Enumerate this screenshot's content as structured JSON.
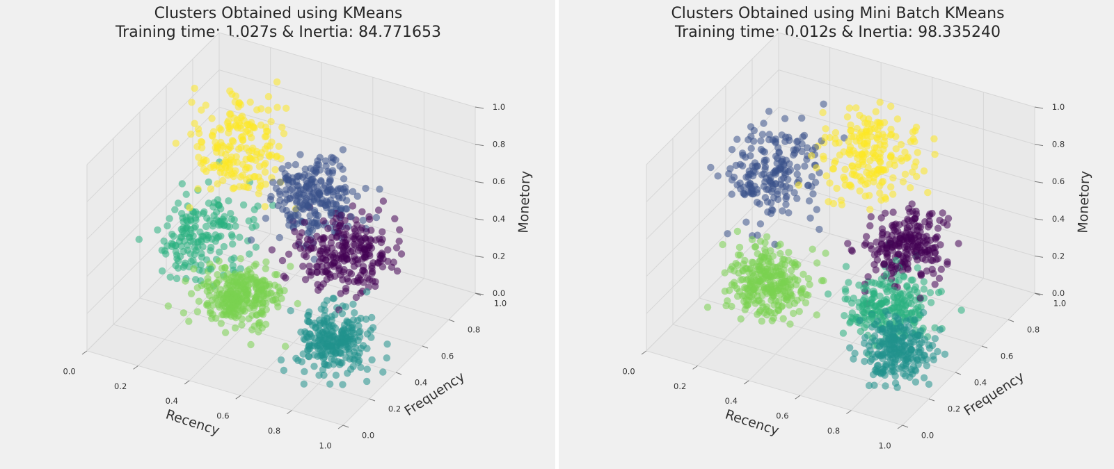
{
  "figure": {
    "background": "#f0f0f0",
    "pane_color": "#e9e9e9",
    "grid_color": "#d6d6d6",
    "palette": {
      "0": "#440154",
      "1": "#3b528b",
      "2": "#21918c",
      "3": "#2ab07f",
      "4": "#7ad151",
      "5": "#fde725"
    }
  },
  "chart_data": [
    {
      "type": "scatter",
      "subtype": "3d-scatter",
      "title": "Clusters Obtained using KMeans",
      "subtitle": "Training time: 1.027s & Inertia: 84.771653",
      "xlabel": "Recency",
      "ylabel": "Frequency",
      "zlabel": "Monetory",
      "xlim": [
        0.0,
        1.0
      ],
      "ylim": [
        0.0,
        1.0
      ],
      "zlim": [
        0.0,
        1.0
      ],
      "x_ticks": [
        "0.0",
        "0.2",
        "0.4",
        "0.6",
        "0.8",
        "1.0"
      ],
      "y_ticks": [
        "0.0",
        "0.2",
        "0.4",
        "0.6",
        "0.8",
        "1.0"
      ],
      "z_ticks": [
        "0.0",
        "0.2",
        "0.4",
        "0.6",
        "0.8",
        "1.0"
      ],
      "grid": true,
      "series": [
        {
          "cluster": 5,
          "color": "#fde725",
          "center": [
            0.22,
            0.72,
            0.68
          ],
          "spread": [
            0.12,
            0.18,
            0.18
          ],
          "count": 190
        },
        {
          "cluster": 1,
          "color": "#3b528b",
          "center": [
            0.52,
            0.72,
            0.52
          ],
          "spread": [
            0.12,
            0.14,
            0.14
          ],
          "count": 240
        },
        {
          "cluster": 0,
          "color": "#440154",
          "center": [
            0.72,
            0.55,
            0.42
          ],
          "spread": [
            0.14,
            0.16,
            0.14
          ],
          "count": 250
        },
        {
          "cluster": 3,
          "color": "#2ab07f",
          "center": [
            0.18,
            0.55,
            0.3
          ],
          "spread": [
            0.13,
            0.18,
            0.14
          ],
          "count": 180
        },
        {
          "cluster": 4,
          "color": "#7ad151",
          "center": [
            0.42,
            0.35,
            0.22
          ],
          "spread": [
            0.11,
            0.12,
            0.1
          ],
          "count": 300
        },
        {
          "cluster": 2,
          "color": "#21918c",
          "center": [
            0.82,
            0.28,
            0.18
          ],
          "spread": [
            0.1,
            0.12,
            0.12
          ],
          "count": 260
        }
      ]
    },
    {
      "type": "scatter",
      "subtype": "3d-scatter",
      "title": "Clusters Obtained using Mini Batch KMeans",
      "subtitle": "Training time: 0.012s & Inertia: 98.335240",
      "xlabel": "Recency",
      "ylabel": "Frequency",
      "zlabel": "Monetory",
      "xlim": [
        0.0,
        1.0
      ],
      "ylim": [
        0.0,
        1.0
      ],
      "zlim": [
        0.0,
        1.0
      ],
      "x_ticks": [
        "0.0",
        "0.2",
        "0.4",
        "0.6",
        "0.8",
        "1.0"
      ],
      "y_ticks": [
        "0.0",
        "0.2",
        "0.4",
        "0.6",
        "0.8",
        "1.0"
      ],
      "z_ticks": [
        "0.0",
        "0.2",
        "0.4",
        "0.6",
        "0.8",
        "1.0"
      ],
      "grid": true,
      "series": [
        {
          "cluster": 1,
          "color": "#3b528b",
          "center": [
            0.15,
            0.68,
            0.55
          ],
          "spread": [
            0.12,
            0.18,
            0.18
          ],
          "count": 200
        },
        {
          "cluster": 5,
          "color": "#fde725",
          "center": [
            0.45,
            0.8,
            0.65
          ],
          "spread": [
            0.13,
            0.14,
            0.16
          ],
          "count": 200
        },
        {
          "cluster": 0,
          "color": "#440154",
          "center": [
            0.7,
            0.6,
            0.42
          ],
          "spread": [
            0.12,
            0.14,
            0.12
          ],
          "count": 230
        },
        {
          "cluster": 4,
          "color": "#7ad151",
          "center": [
            0.3,
            0.35,
            0.24
          ],
          "spread": [
            0.12,
            0.12,
            0.12
          ],
          "count": 280
        },
        {
          "cluster": 3,
          "color": "#2ab07f",
          "center": [
            0.72,
            0.42,
            0.22
          ],
          "spread": [
            0.12,
            0.14,
            0.12
          ],
          "count": 240
        },
        {
          "cluster": 2,
          "color": "#21918c",
          "center": [
            0.85,
            0.25,
            0.18
          ],
          "spread": [
            0.1,
            0.12,
            0.12
          ],
          "count": 240
        }
      ]
    }
  ]
}
